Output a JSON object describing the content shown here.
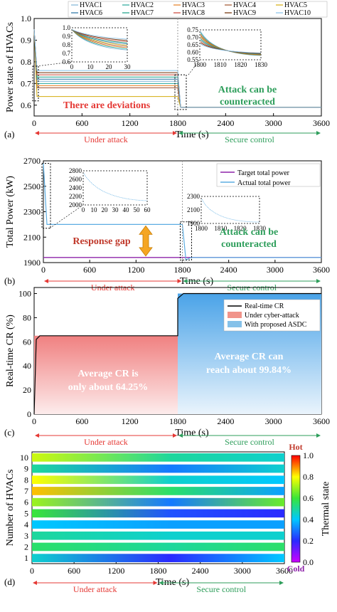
{
  "chart_data": [
    {
      "panel": "(a)",
      "type": "line",
      "ylabel": "Power state of HVACs",
      "xlabel": "Time (s)",
      "xlim": [
        0,
        3600
      ],
      "ylim": [
        0.55,
        1.0
      ],
      "xticks": [
        "0",
        "600",
        "1200",
        "1800",
        "2400",
        "3000",
        "3600"
      ],
      "yticks": [
        "0.6",
        "0.7",
        "0.8",
        "0.9",
        "1.0"
      ],
      "legend": "top",
      "series": [
        {
          "name": "HVAC1",
          "color": "#7fb3d5",
          "attack_level": 0.71,
          "secure_level": 0.59
        },
        {
          "name": "HVAC2",
          "color": "#26a69a",
          "attack_level": 0.7,
          "secure_level": 0.59
        },
        {
          "name": "HVAC3",
          "color": "#e67e22",
          "attack_level": 0.69,
          "secure_level": 0.59
        },
        {
          "name": "HVAC4",
          "color": "#a0522d",
          "attack_level": 0.68,
          "secure_level": 0.59
        },
        {
          "name": "HVAC5",
          "color": "#d4ac0d",
          "attack_level": 0.64,
          "secure_level": 0.59
        },
        {
          "name": "HVAC6",
          "color": "#2471a3",
          "attack_level": 0.72,
          "secure_level": 0.59
        },
        {
          "name": "HVAC7",
          "color": "#16a085",
          "attack_level": 0.73,
          "secure_level": 0.59
        },
        {
          "name": "HVAC8",
          "color": "#cb4335",
          "attack_level": 0.74,
          "secure_level": 0.59
        },
        {
          "name": "HVAC9",
          "color": "#6e2c00",
          "attack_level": 0.75,
          "secure_level": 0.59
        },
        {
          "name": "HVAC10",
          "color": "#85c1e9",
          "attack_level": 0.76,
          "secure_level": 0.59
        }
      ],
      "annotations": [
        "There are deviations",
        "Attack can be",
        "counteracted"
      ],
      "phases": [
        "Under attack",
        "Secure control"
      ],
      "inset1": {
        "xticks": [
          "0",
          "10",
          "20",
          "30"
        ],
        "yticks": [
          "0.6",
          "0.7",
          "0.8",
          "0.9",
          "1.0"
        ]
      },
      "inset2": {
        "xticks": [
          "1800",
          "1810",
          "1820",
          "1830"
        ],
        "yticks": [
          "0.55",
          "0.60",
          "0.65",
          "0.70",
          "0.75"
        ]
      }
    },
    {
      "panel": "(b)",
      "type": "line",
      "ylabel": "Total Power (kW)",
      "xlabel": "Time (s)",
      "xlim": [
        0,
        3600
      ],
      "ylim": [
        1900,
        2700
      ],
      "xticks": [
        "0",
        "600",
        "1200",
        "1800",
        "2400",
        "3000",
        "3600"
      ],
      "yticks": [
        "1900",
        "2100",
        "2300",
        "2500",
        "2700"
      ],
      "legend": "top-right",
      "series": [
        {
          "name": "Target total power",
          "color": "#8e24aa",
          "values_attack": 1940,
          "values_secure": 1940
        },
        {
          "name": "Actual total power",
          "color": "#5dade2",
          "values_attack": 2200,
          "values_secure": 1940
        }
      ],
      "annotations": [
        "Response gap",
        "Attack can be",
        "counteracted"
      ],
      "phases": [
        "Under attack",
        "Secure control"
      ],
      "inset1": {
        "xticks": [
          "0",
          "10",
          "20",
          "30",
          "40",
          "50",
          "60"
        ],
        "yticks": [
          "2000",
          "2200",
          "2400",
          "2600",
          "2800"
        ]
      },
      "inset2": {
        "xticks": [
          "1800",
          "1810",
          "1820",
          "1830"
        ],
        "yticks": [
          "1900",
          "2100",
          "2300"
        ]
      }
    },
    {
      "panel": "(c)",
      "type": "area",
      "ylabel": "Real-time CR (%)",
      "xlabel": "Time (s)",
      "xlim": [
        0,
        3600
      ],
      "ylim": [
        0,
        105
      ],
      "xticks": [
        "0",
        "600",
        "1200",
        "1800",
        "2400",
        "3000",
        "3600"
      ],
      "yticks": [
        "0",
        "20",
        "40",
        "60",
        "80",
        "100"
      ],
      "legend": "top-right",
      "series": [
        {
          "name": "Real-time CR",
          "color": "#000000"
        },
        {
          "name": "Under cyber-attack",
          "color": "#f1948a",
          "value": 64.25
        },
        {
          "name": "With proposed ASDC",
          "color": "#85c1e9",
          "value": 99.84
        }
      ],
      "annotations": [
        "Average CR is",
        "only about 64.25%",
        "Average CR can",
        "reach about 99.84%"
      ],
      "phases": [
        "Under attack",
        "Secure control"
      ]
    },
    {
      "panel": "(d)",
      "type": "heatmap",
      "ylabel": "Number of HVACs",
      "xlabel": "Time (s)",
      "xlim": [
        0,
        3600
      ],
      "xticks": [
        "0",
        "600",
        "1200",
        "1800",
        "2400",
        "3000",
        "3600"
      ],
      "yticks": [
        "1",
        "2",
        "3",
        "4",
        "5",
        "6",
        "7",
        "8",
        "9",
        "10"
      ],
      "colorbar": {
        "label": "Thermal state",
        "top": "Hot",
        "bottom": "Cold",
        "ticks": [
          "0.0",
          "0.2",
          "0.4",
          "0.6",
          "0.8",
          "1.0"
        ]
      },
      "rows": [
        {
          "hvac": 1,
          "start": 0.45,
          "mid": 0.2,
          "end": 0.4
        },
        {
          "hvac": 2,
          "start": 0.55,
          "mid": 0.5,
          "end": 0.55
        },
        {
          "hvac": 3,
          "start": 0.5,
          "mid": 0.45,
          "end": 0.45
        },
        {
          "hvac": 4,
          "start": 0.4,
          "mid": 0.35,
          "end": 0.35
        },
        {
          "hvac": 5,
          "start": 0.6,
          "mid": 0.25,
          "end": 0.2
        },
        {
          "hvac": 6,
          "start": 0.7,
          "mid": 0.3,
          "end": 0.65
        },
        {
          "hvac": 7,
          "start": 0.85,
          "mid": 0.55,
          "end": 0.35
        },
        {
          "hvac": 8,
          "start": 0.8,
          "mid": 0.45,
          "end": 0.4
        },
        {
          "hvac": 9,
          "start": 0.5,
          "mid": 0.3,
          "end": 0.45
        },
        {
          "hvac": 10,
          "start": 0.75,
          "mid": 0.5,
          "end": 0.45
        }
      ],
      "phases": [
        "Under attack",
        "Secure control"
      ]
    }
  ]
}
